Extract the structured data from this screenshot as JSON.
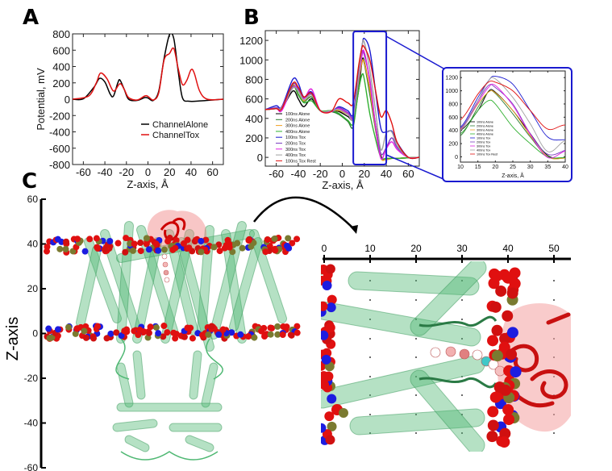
{
  "panels": {
    "a": "A",
    "b": "B",
    "c": "C"
  },
  "chart_data": [
    {
      "id": "A",
      "type": "line",
      "xlabel": "Z-axis, Å",
      "ylabel": "Potential, mV",
      "xlim": [
        -70,
        70
      ],
      "ylim": [
        -800,
        800
      ],
      "xticks": [
        -60,
        -40,
        -20,
        0,
        20,
        40,
        60
      ],
      "yticks": [
        -800,
        -600,
        -400,
        -200,
        0,
        200,
        400,
        600,
        800
      ],
      "legend_position": "lower-right",
      "series": [
        {
          "name": "ChannelAlone",
          "color": "#000000",
          "x": [
            -70,
            -60,
            -50,
            -45,
            -40,
            -35,
            -32,
            -28,
            -26,
            -22,
            -18,
            -10,
            -3,
            0,
            5,
            10,
            15,
            20,
            24,
            28,
            32,
            38,
            50,
            70
          ],
          "y": [
            0,
            5,
            150,
            255,
            210,
            60,
            40,
            200,
            235,
            120,
            0,
            -15,
            20,
            15,
            -15,
            100,
            500,
            790,
            740,
            350,
            20,
            -25,
            -20,
            0
          ]
        },
        {
          "name": "ChannelTox",
          "color": "#e01010",
          "x": [
            -70,
            -55,
            -48,
            -44,
            -38,
            -32,
            -26,
            -22,
            -18,
            -10,
            -3,
            0,
            5,
            10,
            15,
            20,
            24,
            28,
            32,
            36,
            40,
            43,
            48,
            55,
            70
          ],
          "y": [
            0,
            40,
            200,
            320,
            250,
            100,
            190,
            120,
            20,
            -10,
            40,
            35,
            -10,
            80,
            480,
            560,
            620,
            380,
            180,
            230,
            360,
            320,
            100,
            0,
            0
          ]
        }
      ]
    },
    {
      "id": "B",
      "type": "line",
      "xlabel": "Z-axis, Å",
      "ylabel": "",
      "xlim": [
        -70,
        70
      ],
      "ylim": [
        -90,
        1300
      ],
      "xticks": [
        -60,
        -40,
        -20,
        0,
        20,
        40,
        60
      ],
      "yticks": [
        0,
        200,
        400,
        600,
        800,
        1000,
        1200
      ],
      "highlight_x_range": [
        10,
        40
      ],
      "legend_position": "lower-left",
      "x": [
        -70,
        -60,
        -55,
        -45,
        -40,
        -35,
        -28,
        -20,
        -10,
        -3,
        5,
        10,
        15,
        18,
        20,
        25,
        30,
        35,
        40,
        45,
        50,
        60,
        70
      ],
      "series": [
        {
          "name": "100ns Alone",
          "color": "#000000",
          "y": [
            490,
            500,
            500,
            680,
            600,
            520,
            600,
            480,
            480,
            470,
            420,
            400,
            700,
            990,
            980,
            700,
            350,
            20,
            -20,
            -10,
            -10,
            -5,
            0
          ]
        },
        {
          "name": "200ns Alone",
          "color": "#2e7d32",
          "y": [
            490,
            500,
            510,
            720,
            640,
            570,
            620,
            480,
            470,
            440,
            370,
            320,
            750,
            980,
            960,
            650,
            300,
            0,
            -20,
            -10,
            -10,
            -5,
            0
          ]
        },
        {
          "name": "300ns Alone",
          "color": "#f0a020",
          "y": [
            490,
            500,
            510,
            740,
            650,
            580,
            640,
            480,
            480,
            480,
            440,
            420,
            800,
            980,
            970,
            700,
            320,
            0,
            -20,
            -10,
            -10,
            -5,
            0
          ]
        },
        {
          "name": "400ns Alone",
          "color": "#30b030",
          "y": [
            490,
            500,
            510,
            730,
            650,
            560,
            580,
            480,
            480,
            450,
            380,
            350,
            700,
            850,
            800,
            450,
            200,
            0,
            -10,
            -10,
            -10,
            -5,
            0
          ]
        },
        {
          "name": "100ns Tox",
          "color": "#1a1ad0",
          "y": [
            490,
            530,
            520,
            800,
            760,
            620,
            670,
            480,
            470,
            520,
            480,
            450,
            900,
            1150,
            1220,
            1100,
            700,
            300,
            260,
            270,
            150,
            0,
            0
          ]
        },
        {
          "name": "200ns Tox",
          "color": "#7b3fc0",
          "y": [
            490,
            510,
            520,
            750,
            700,
            610,
            650,
            480,
            470,
            510,
            460,
            430,
            850,
            1080,
            1050,
            800,
            350,
            40,
            100,
            200,
            100,
            0,
            0
          ]
        },
        {
          "name": "300ns Tox",
          "color": "#e020e0",
          "y": [
            490,
            500,
            480,
            720,
            680,
            600,
            700,
            480,
            470,
            500,
            450,
            410,
            820,
            1050,
            1080,
            780,
            340,
            -10,
            90,
            160,
            80,
            0,
            0
          ]
        },
        {
          "name": "400ns Tox",
          "color": "#a0a0a0",
          "y": [
            490,
            500,
            510,
            710,
            680,
            590,
            640,
            480,
            480,
            490,
            440,
            400,
            850,
            1150,
            1180,
            900,
            500,
            80,
            250,
            260,
            120,
            0,
            0
          ]
        },
        {
          "name": "100ns Tox Rest",
          "color": "#e01010",
          "y": [
            490,
            500,
            500,
            760,
            720,
            620,
            660,
            480,
            470,
            600,
            560,
            560,
            950,
            1130,
            1130,
            1000,
            700,
            420,
            480,
            350,
            150,
            0,
            0
          ]
        }
      ]
    },
    {
      "id": "B-inset",
      "type": "line",
      "xlabel": "Z-axis, Å",
      "xlim": [
        10,
        40
      ],
      "ylim": [
        -80,
        1300
      ],
      "xticks": [
        10,
        15,
        20,
        25,
        30,
        35,
        40
      ],
      "yticks": [
        0,
        200,
        400,
        600,
        800,
        1000,
        1200
      ],
      "series_ref": "B"
    },
    {
      "id": "C",
      "type": "image-axes",
      "ylabel": "Z-axis",
      "yticks": [
        60,
        40,
        20,
        0,
        -20,
        -40,
        -60
      ],
      "zoom_xticks": [
        0,
        10,
        20,
        30,
        40,
        50
      ]
    }
  ]
}
